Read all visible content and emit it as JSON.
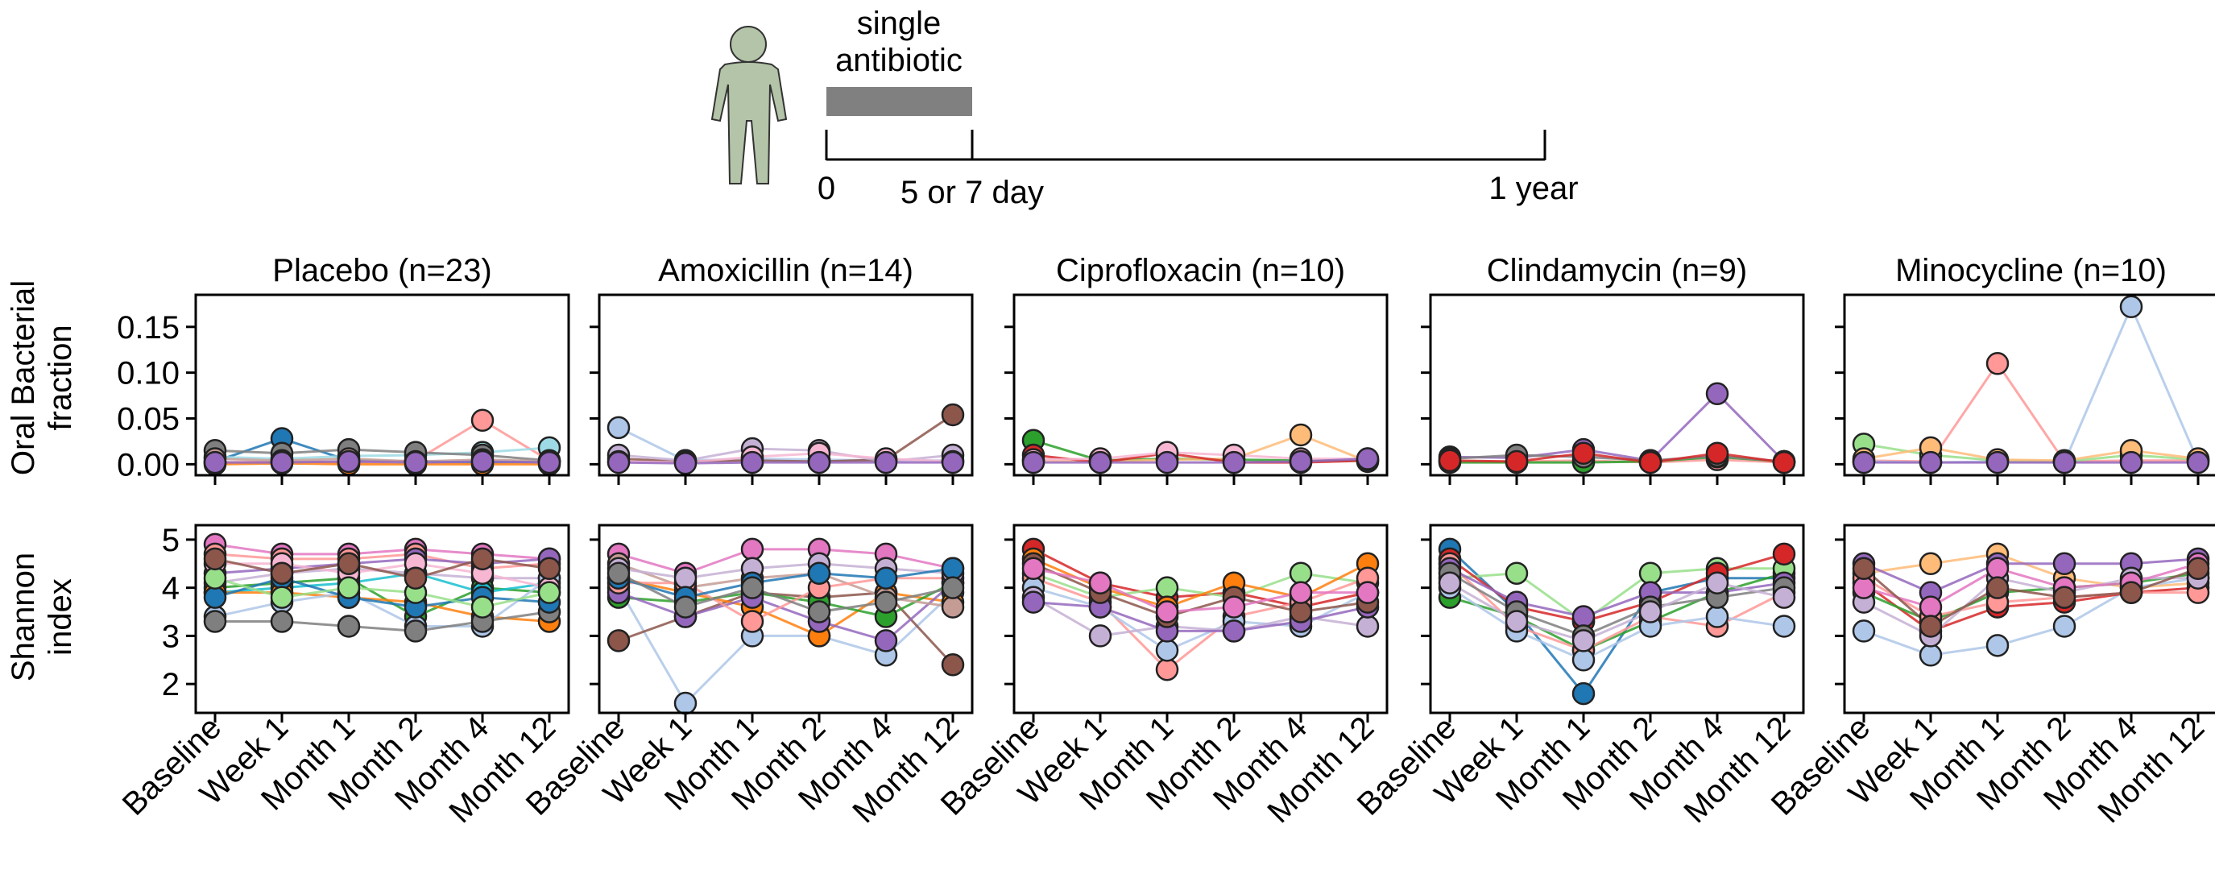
{
  "timeline": {
    "bar_label_1": "single",
    "bar_label_2": "antibiotic",
    "tick_start": "0",
    "tick_mid": "5 or 7 day",
    "tick_end": "1 year",
    "person_color": "#b3c4a8",
    "bar_color": "#808080"
  },
  "chart_data": {
    "type": "line",
    "timepoints": [
      "Baseline",
      "Week 1",
      "Month 1",
      "Month 2",
      "Month 4",
      "Month 12"
    ],
    "rows": [
      {
        "ylabel_1": "Oral Bacterial",
        "ylabel_2": "fraction",
        "ylim": [
          -0.012,
          0.185
        ],
        "yticks": [
          "0.00",
          "0.05",
          "0.10",
          "0.15"
        ],
        "ytick_values": [
          0,
          0.05,
          0.1,
          0.15
        ]
      },
      {
        "ylabel_1": "Shannon",
        "ylabel_2": "index",
        "ylim": [
          1.4,
          5.3
        ],
        "yticks": [
          "2",
          "3",
          "4",
          "5"
        ],
        "ytick_values": [
          2,
          3,
          4,
          5
        ]
      }
    ],
    "panels": [
      {
        "title": "Placebo (n=23)",
        "oral_fraction": [
          {
            "color": "#1f77b4",
            "values": [
              0.003,
              0.028,
              0.004,
              0.003,
              0.002,
              0.003
            ]
          },
          {
            "color": "#ff9896",
            "values": [
              0.002,
              0.003,
              0.002,
              0.004,
              0.048,
              0.004
            ]
          },
          {
            "color": "#9edae5",
            "values": [
              0.008,
              0.006,
              0.009,
              0.01,
              0.013,
              0.018
            ]
          },
          {
            "color": "#ff7f0e",
            "values": [
              0.0,
              0.001,
              0.0,
              0.0,
              0.0,
              0.0
            ]
          },
          {
            "color": "#7f7f7f",
            "values": [
              0.015,
              0.012,
              0.016,
              0.013,
              0.01,
              0.004
            ]
          },
          {
            "color": "#c49c94",
            "values": [
              0.006,
              0.004,
              0.006,
              0.003,
              0.005,
              0.003
            ]
          },
          {
            "color": "#9467bd",
            "values": [
              0.002,
              0.002,
              0.003,
              0.002,
              0.003,
              0.002
            ]
          }
        ],
        "shannon": [
          {
            "color": "#e377c2",
            "values": [
              4.9,
              4.7,
              4.7,
              4.8,
              4.7,
              4.6
            ]
          },
          {
            "color": "#ff9896",
            "values": [
              4.7,
              4.6,
              4.6,
              4.7,
              4.4,
              4.5
            ]
          },
          {
            "color": "#9467bd",
            "values": [
              4.3,
              4.4,
              4.5,
              4.6,
              4.5,
              4.6
            ]
          },
          {
            "color": "#c5b0d5",
            "values": [
              4.1,
              4.3,
              4.4,
              4.3,
              4.2,
              4.2
            ]
          },
          {
            "color": "#2ca02c",
            "values": [
              4.0,
              4.1,
              4.2,
              3.4,
              4.0,
              3.9
            ]
          },
          {
            "color": "#17becf",
            "values": [
              3.9,
              4.0,
              4.1,
              4.3,
              3.9,
              4.1
            ]
          },
          {
            "color": "#ff7f0e",
            "values": [
              3.9,
              3.9,
              3.8,
              3.7,
              3.4,
              3.3
            ]
          },
          {
            "color": "#aec7e8",
            "values": [
              3.4,
              3.7,
              3.9,
              3.2,
              3.2,
              4.2
            ]
          },
          {
            "color": "#7f7f7f",
            "values": [
              3.3,
              3.3,
              3.2,
              3.1,
              3.3,
              3.5
            ]
          },
          {
            "color": "#1f77b4",
            "values": [
              3.8,
              4.2,
              3.8,
              3.6,
              3.8,
              3.7
            ]
          },
          {
            "color": "#f7b6d2",
            "values": [
              4.5,
              4.5,
              4.3,
              4.5,
              4.3,
              4.0
            ]
          },
          {
            "color": "#98df8a",
            "values": [
              4.2,
              3.8,
              4.0,
              3.9,
              3.6,
              3.9
            ]
          },
          {
            "color": "#8c564b",
            "values": [
              4.6,
              4.3,
              4.5,
              4.2,
              4.6,
              4.4
            ]
          }
        ]
      },
      {
        "title": "Amoxicillin (n=14)",
        "oral_fraction": [
          {
            "color": "#aec7e8",
            "values": [
              0.04,
              0.004,
              0.006,
              0.005,
              0.004,
              0.004
            ]
          },
          {
            "color": "#8c564b",
            "values": [
              0.006,
              0.003,
              0.004,
              0.003,
              0.005,
              0.054
            ]
          },
          {
            "color": "#c5b0d5",
            "values": [
              0.01,
              0.004,
              0.017,
              0.015,
              0.003,
              0.01
            ]
          },
          {
            "color": "#f7b6d2",
            "values": [
              0.003,
              0.002,
              0.008,
              0.012,
              0.006,
              0.003
            ]
          },
          {
            "color": "#9467bd",
            "values": [
              0.002,
              0.001,
              0.002,
              0.002,
              0.002,
              0.002
            ]
          }
        ],
        "shannon": [
          {
            "color": "#e377c2",
            "values": [
              4.7,
              4.3,
              4.8,
              4.8,
              4.7,
              4.4
            ]
          },
          {
            "color": "#aec7e8",
            "values": [
              4.0,
              1.6,
              3.0,
              3.0,
              2.6,
              3.9
            ]
          },
          {
            "color": "#8c564b",
            "values": [
              2.9,
              3.4,
              3.9,
              3.8,
              3.9,
              2.4
            ]
          },
          {
            "color": "#ff7f0e",
            "values": [
              4.2,
              3.9,
              3.6,
              3.0,
              3.9,
              3.7
            ]
          },
          {
            "color": "#2ca02c",
            "values": [
              3.8,
              3.7,
              3.9,
              3.7,
              3.4,
              4.1
            ]
          },
          {
            "color": "#9467bd",
            "values": [
              3.9,
              3.4,
              3.8,
              3.3,
              2.9,
              4.1
            ]
          },
          {
            "color": "#c49c94",
            "values": [
              4.5,
              4.0,
              4.2,
              4.3,
              3.8,
              3.6
            ]
          },
          {
            "color": "#ff9896",
            "values": [
              4.1,
              4.1,
              3.3,
              4.0,
              4.2,
              4.2
            ]
          },
          {
            "color": "#c5b0d5",
            "values": [
              4.4,
              4.2,
              4.4,
              4.5,
              4.4,
              4.3
            ]
          },
          {
            "color": "#1f77b4",
            "values": [
              4.2,
              3.8,
              4.1,
              4.3,
              4.2,
              4.4
            ]
          },
          {
            "color": "#7f7f7f",
            "values": [
              4.3,
              3.6,
              4.0,
              3.5,
              3.7,
              4.0
            ]
          }
        ]
      },
      {
        "title": "Ciprofloxacin (n=10)",
        "oral_fraction": [
          {
            "color": "#2ca02c",
            "values": [
              0.026,
              0.004,
              0.006,
              0.005,
              0.004,
              0.004
            ]
          },
          {
            "color": "#ffbb78",
            "values": [
              0.004,
              0.003,
              0.005,
              0.006,
              0.032,
              0.003
            ]
          },
          {
            "color": "#d62728",
            "values": [
              0.01,
              0.002,
              0.012,
              0.002,
              0.002,
              0.004
            ]
          },
          {
            "color": "#f7b6d2",
            "values": [
              0.005,
              0.006,
              0.013,
              0.01,
              0.006,
              0.006
            ]
          },
          {
            "color": "#9467bd",
            "values": [
              0.002,
              0.002,
              0.002,
              0.002,
              0.003,
              0.006
            ]
          }
        ],
        "shannon": [
          {
            "color": "#d62728",
            "values": [
              4.8,
              4.1,
              3.8,
              3.9,
              3.6,
              3.9
            ]
          },
          {
            "color": "#98df8a",
            "values": [
              4.3,
              3.8,
              4.0,
              3.8,
              4.3,
              4.1
            ]
          },
          {
            "color": "#ff7f0e",
            "values": [
              4.6,
              4.0,
              3.6,
              4.1,
              3.8,
              4.5
            ]
          },
          {
            "color": "#ff9896",
            "values": [
              4.2,
              3.7,
              2.3,
              3.4,
              3.7,
              4.2
            ]
          },
          {
            "color": "#aec7e8",
            "values": [
              4.0,
              3.6,
              2.7,
              3.3,
              3.2,
              3.9
            ]
          },
          {
            "color": "#c5b0d5",
            "values": [
              3.8,
              3.0,
              3.2,
              3.1,
              3.4,
              3.2
            ]
          },
          {
            "color": "#9467bd",
            "values": [
              3.7,
              3.6,
              3.1,
              3.1,
              3.3,
              3.6
            ]
          },
          {
            "color": "#8c564b",
            "values": [
              4.5,
              3.9,
              3.4,
              3.8,
              3.5,
              3.7
            ]
          },
          {
            "color": "#e377c2",
            "values": [
              4.4,
              4.1,
              3.5,
              3.6,
              3.9,
              3.9
            ]
          }
        ]
      },
      {
        "title": "Clindamycin (n=9)",
        "oral_fraction": [
          {
            "color": "#9467bd",
            "values": [
              0.008,
              0.007,
              0.016,
              0.004,
              0.077,
              0.003
            ]
          },
          {
            "color": "#ff9896",
            "values": [
              0.003,
              0.003,
              0.004,
              0.002,
              0.005,
              0.002
            ]
          },
          {
            "color": "#2ca02c",
            "values": [
              0.002,
              0.002,
              0.002,
              0.003,
              0.008,
              0.003
            ]
          },
          {
            "color": "#7f7f7f",
            "values": [
              0.006,
              0.01,
              0.008,
              0.004,
              0.009,
              0.003
            ]
          },
          {
            "color": "#d62728",
            "values": [
              0.004,
              0.003,
              0.012,
              0.002,
              0.012,
              0.002
            ]
          }
        ],
        "shannon": [
          {
            "color": "#1f77b4",
            "values": [
              4.8,
              3.5,
              1.8,
              3.9,
              4.2,
              4.2
            ]
          },
          {
            "color": "#2ca02c",
            "values": [
              3.8,
              3.4,
              2.7,
              3.3,
              3.9,
              4.3
            ]
          },
          {
            "color": "#98df8a",
            "values": [
              4.2,
              4.3,
              3.3,
              4.3,
              4.4,
              4.4
            ]
          },
          {
            "color": "#d62728",
            "values": [
              4.6,
              3.6,
              3.3,
              3.7,
              4.3,
              4.7
            ]
          },
          {
            "color": "#ff9896",
            "values": [
              4.5,
              3.2,
              2.7,
              3.4,
              3.2,
              3.9
            ]
          },
          {
            "color": "#aec7e8",
            "values": [
              4.0,
              3.1,
              2.5,
              3.2,
              3.4,
              3.2
            ]
          },
          {
            "color": "#9467bd",
            "values": [
              4.4,
              3.7,
              3.4,
              3.9,
              3.9,
              4.1
            ]
          },
          {
            "color": "#7f7f7f",
            "values": [
              4.3,
              3.5,
              3.0,
              3.6,
              3.8,
              4.0
            ]
          },
          {
            "color": "#c5b0d5",
            "values": [
              4.1,
              3.3,
              2.9,
              3.5,
              4.1,
              3.8
            ]
          }
        ]
      },
      {
        "title": "Minocycline (n=10)",
        "oral_fraction": [
          {
            "color": "#ff9896",
            "values": [
              0.004,
              0.003,
              0.11,
              0.003,
              0.004,
              0.004
            ]
          },
          {
            "color": "#aec7e8",
            "values": [
              0.003,
              0.002,
              0.003,
              0.002,
              0.172,
              0.003
            ]
          },
          {
            "color": "#98df8a",
            "values": [
              0.022,
              0.01,
              0.004,
              0.003,
              0.01,
              0.005
            ]
          },
          {
            "color": "#ffbb78",
            "values": [
              0.006,
              0.018,
              0.005,
              0.004,
              0.015,
              0.006
            ]
          },
          {
            "color": "#9467bd",
            "values": [
              0.002,
              0.002,
              0.002,
              0.002,
              0.002,
              0.002
            ]
          }
        ],
        "shannon": [
          {
            "color": "#ffbb78",
            "values": [
              4.3,
              4.5,
              4.7,
              4.2,
              4.0,
              4.1
            ]
          },
          {
            "color": "#aec7e8",
            "values": [
              3.1,
              2.6,
              2.8,
              3.2,
              4.0,
              4.2
            ]
          },
          {
            "color": "#9467bd",
            "values": [
              4.5,
              3.9,
              4.5,
              4.5,
              4.5,
              4.6
            ]
          },
          {
            "color": "#d62728",
            "values": [
              4.1,
              3.1,
              3.6,
              3.7,
              3.9,
              4.0
            ]
          },
          {
            "color": "#2ca02c",
            "values": [
              3.9,
              3.3,
              3.9,
              4.0,
              4.1,
              4.3
            ]
          },
          {
            "color": "#ff9896",
            "values": [
              4.2,
              3.4,
              3.7,
              3.8,
              3.9,
              3.9
            ]
          },
          {
            "color": "#c5b0d5",
            "values": [
              3.7,
              3.0,
              4.2,
              3.9,
              4.2,
              4.2
            ]
          },
          {
            "color": "#e377c2",
            "values": [
              4.0,
              3.6,
              4.4,
              4.0,
              4.1,
              4.5
            ]
          },
          {
            "color": "#8c564b",
            "values": [
              4.4,
              3.2,
              4.0,
              3.8,
              3.9,
              4.4
            ]
          }
        ]
      }
    ]
  }
}
